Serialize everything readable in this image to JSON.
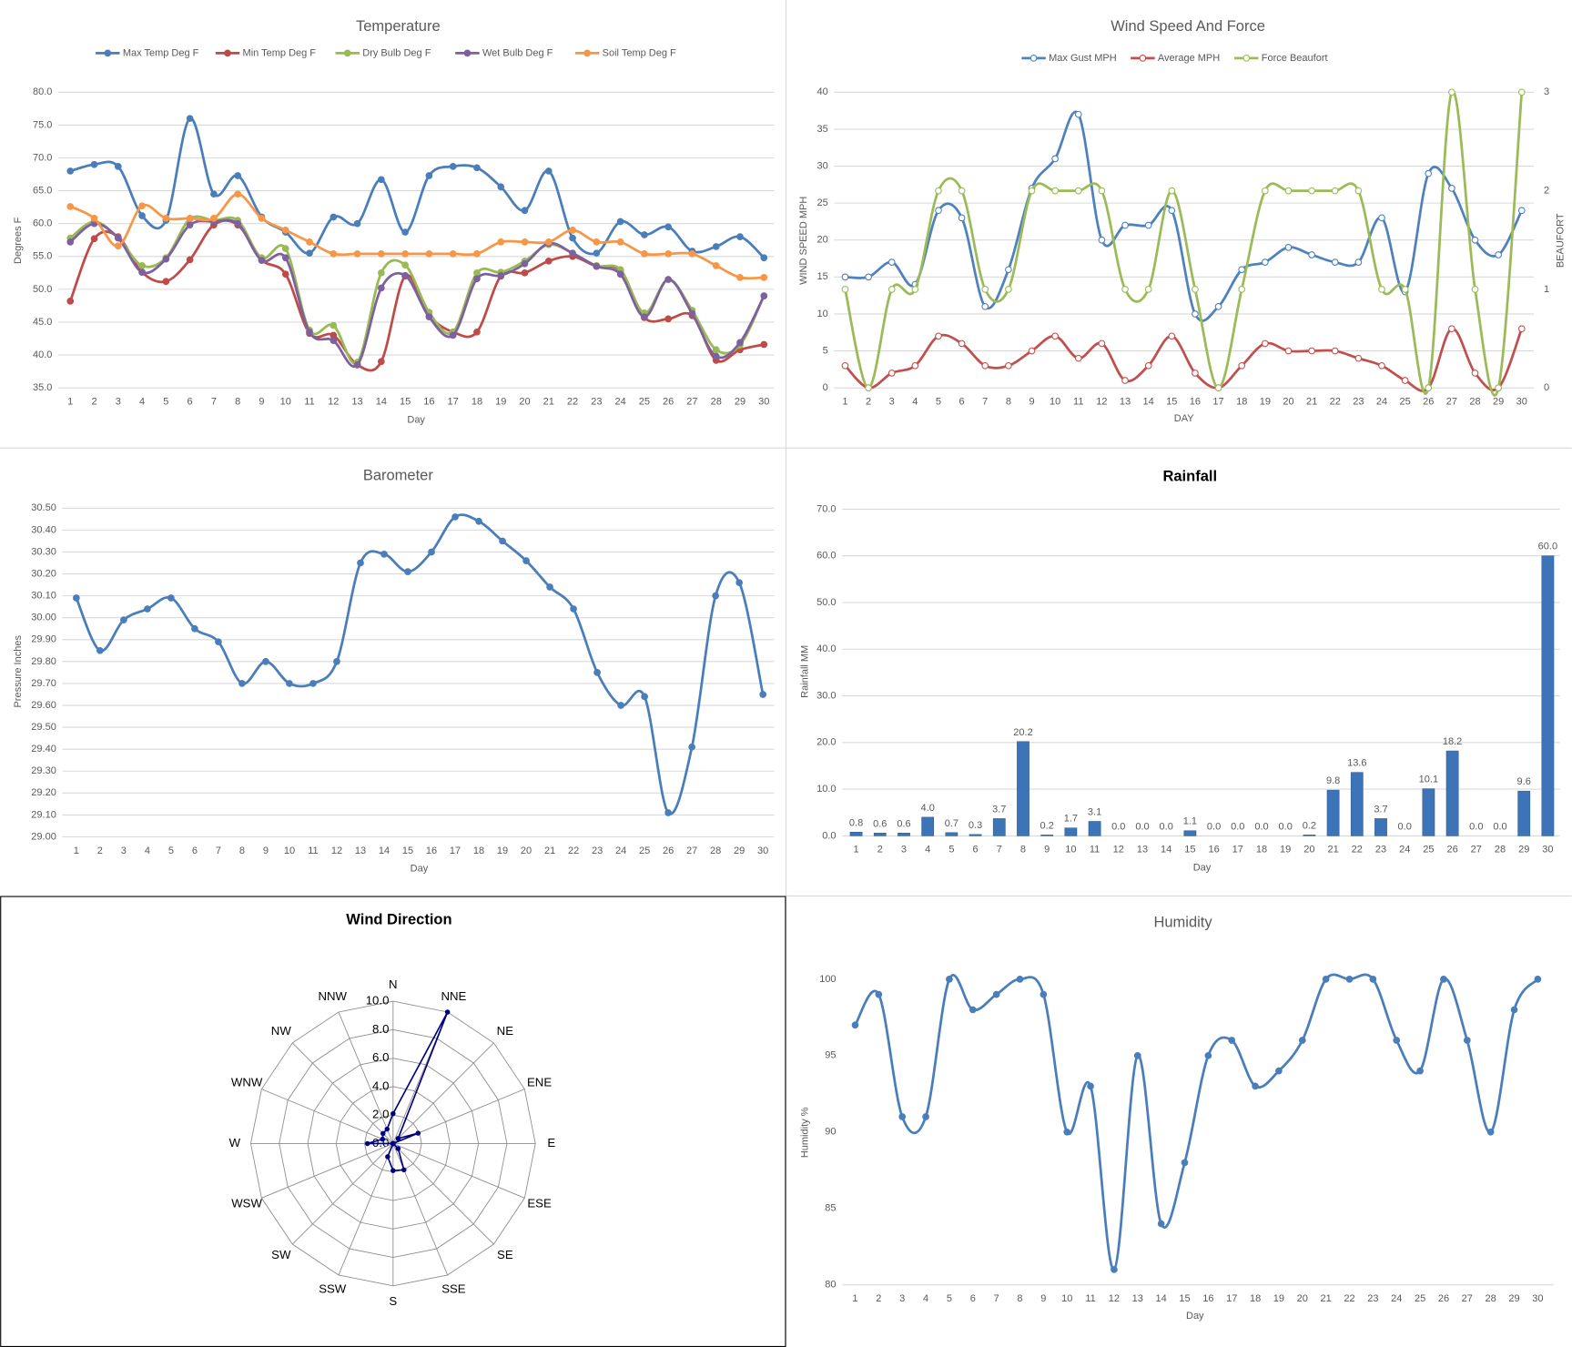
{
  "chart_data": [
    {
      "type": "line",
      "title": "Temperature",
      "legend": "top",
      "grid": true,
      "x_label": "Day",
      "y_label": "Degrees F",
      "categories": [
        1,
        2,
        3,
        4,
        5,
        6,
        7,
        8,
        9,
        10,
        11,
        12,
        13,
        14,
        15,
        16,
        17,
        18,
        19,
        20,
        21,
        22,
        23,
        24,
        25,
        26,
        27,
        28,
        29,
        30
      ],
      "ylim": [
        35,
        80
      ],
      "yticks": [
        {
          "value": 35,
          "label": "35.0"
        },
        {
          "value": 40,
          "label": "40.0"
        },
        {
          "value": 45,
          "label": "45.0"
        },
        {
          "value": 50,
          "label": "50.0"
        },
        {
          "value": 55,
          "label": "55.0"
        },
        {
          "value": 60,
          "label": "60.0"
        },
        {
          "value": 65,
          "label": "65.0"
        },
        {
          "value": 70,
          "label": "70.0"
        },
        {
          "value": 75,
          "label": "75.0"
        },
        {
          "value": 80,
          "label": "80.0"
        }
      ],
      "series": [
        {
          "name": "Max Temp Deg F",
          "color": "#4a7ebb",
          "values": [
            68.0,
            69.0,
            68.7,
            61.2,
            60.5,
            76.0,
            64.5,
            67.3,
            61.0,
            58.7,
            55.5,
            61.0,
            60.0,
            66.7,
            58.7,
            67.3,
            68.7,
            68.5,
            65.6,
            62.0,
            68.0,
            57.8,
            55.5,
            60.3,
            58.3,
            59.5,
            55.8,
            56.5,
            58.0,
            54.8
          ]
        },
        {
          "name": "Min Temp Deg F",
          "color": "#be4b48",
          "values": [
            48.2,
            57.7,
            58.0,
            52.6,
            51.2,
            54.5,
            59.8,
            59.8,
            54.5,
            52.3,
            43.3,
            43.0,
            38.5,
            39.0,
            52.0,
            46.0,
            43.5,
            43.5,
            52.0,
            52.5,
            54.3,
            55.0,
            53.5,
            52.8,
            45.7,
            45.5,
            46.0,
            39.2,
            40.8,
            41.6
          ]
        },
        {
          "name": "Dry Bulb Deg F",
          "color": "#98b954",
          "values": [
            57.8,
            60.3,
            57.8,
            53.6,
            54.8,
            60.7,
            60.5,
            60.5,
            54.8,
            56.2,
            43.8,
            44.5,
            38.9,
            52.5,
            53.7,
            46.5,
            43.5,
            52.5,
            52.6,
            54.3,
            56.8,
            55.5,
            53.6,
            53.0,
            46.4,
            51.5,
            46.8,
            40.8,
            41.5,
            49.0
          ]
        },
        {
          "name": "Wet Bulb Deg F",
          "color": "#7d60a0",
          "values": [
            57.2,
            60.0,
            57.8,
            52.6,
            54.6,
            59.8,
            60.3,
            60.0,
            54.4,
            54.8,
            43.5,
            42.2,
            38.5,
            50.2,
            52.1,
            45.8,
            43.0,
            51.6,
            52.1,
            53.9,
            57.0,
            55.5,
            53.5,
            52.3,
            45.8,
            51.5,
            46.3,
            39.8,
            41.9,
            49.0
          ]
        },
        {
          "name": "Soil Temp Deg F",
          "color": "#f79646",
          "values": [
            62.6,
            60.8,
            56.6,
            62.7,
            60.8,
            60.8,
            60.8,
            64.5,
            60.8,
            59.0,
            57.2,
            55.4,
            55.4,
            55.4,
            55.4,
            55.4,
            55.4,
            55.4,
            57.2,
            57.2,
            57.2,
            59.0,
            57.2,
            57.2,
            55.4,
            55.4,
            55.4,
            53.6,
            51.8,
            51.8
          ]
        }
      ]
    },
    {
      "type": "line",
      "title": "Wind Speed And Force",
      "legend": "top",
      "grid": true,
      "markers": "hollow",
      "x_label": "DAY",
      "y_label": "WIND SPEED MPH",
      "y2_label": "BEAUFORT",
      "categories": [
        1,
        2,
        3,
        4,
        5,
        6,
        7,
        8,
        9,
        10,
        11,
        12,
        13,
        14,
        15,
        16,
        17,
        18,
        19,
        20,
        21,
        22,
        23,
        24,
        25,
        26,
        27,
        28,
        29,
        30
      ],
      "ylim": [
        0,
        40
      ],
      "yticks": [
        0,
        5,
        10,
        15,
        20,
        25,
        30,
        35,
        40
      ],
      "y2lim": [
        0,
        3
      ],
      "y2ticks": [
        0,
        1,
        2,
        3
      ],
      "series": [
        {
          "name": "Max Gust MPH",
          "color": "#4f81bd",
          "values": [
            15,
            15,
            17,
            14,
            24,
            23,
            11,
            16,
            27,
            31,
            37,
            20,
            22,
            22,
            24,
            10,
            11,
            16,
            17,
            19,
            18,
            17,
            17,
            23,
            13,
            29,
            27,
            20,
            18,
            24
          ]
        },
        {
          "name": "Average MPH",
          "color": "#c0504d",
          "values": [
            3,
            0,
            2,
            3,
            7,
            6,
            3,
            3,
            5,
            7,
            4,
            6,
            1,
            3,
            7,
            2,
            0,
            3,
            6,
            5,
            5,
            5,
            4,
            3,
            1,
            0,
            8,
            2,
            0,
            8
          ]
        },
        {
          "name": "Force Beaufort",
          "color": "#9bbb59",
          "axis": "y2",
          "values": [
            1,
            0,
            1,
            1,
            2,
            2,
            1,
            1,
            2,
            2,
            2,
            2,
            1,
            1,
            2,
            1,
            0,
            1,
            2,
            2,
            2,
            2,
            2,
            1,
            1,
            0,
            3,
            1,
            0,
            3
          ]
        }
      ]
    },
    {
      "type": "line",
      "title": "Barometer",
      "grid": true,
      "x_label": "Day",
      "y_label": "Pressure Inches",
      "categories": [
        1,
        2,
        3,
        4,
        5,
        6,
        7,
        8,
        9,
        10,
        11,
        12,
        13,
        14,
        15,
        16,
        17,
        18,
        19,
        20,
        21,
        22,
        23,
        24,
        25,
        26,
        27,
        28,
        29,
        30
      ],
      "ylim": [
        29.0,
        30.5
      ],
      "yticks": [
        {
          "value": 29.0,
          "label": "29.00"
        },
        {
          "value": 29.1,
          "label": "29.10"
        },
        {
          "value": 29.2,
          "label": "29.20"
        },
        {
          "value": 29.3,
          "label": "29.30"
        },
        {
          "value": 29.4,
          "label": "29.40"
        },
        {
          "value": 29.5,
          "label": "29.50"
        },
        {
          "value": 29.6,
          "label": "29.60"
        },
        {
          "value": 29.7,
          "label": "29.70"
        },
        {
          "value": 29.8,
          "label": "29.80"
        },
        {
          "value": 29.9,
          "label": "29.90"
        },
        {
          "value": 30.0,
          "label": "30.00"
        },
        {
          "value": 30.1,
          "label": "30.10"
        },
        {
          "value": 30.2,
          "label": "30.20"
        },
        {
          "value": 30.3,
          "label": "30.30"
        },
        {
          "value": 30.4,
          "label": "30.40"
        },
        {
          "value": 30.5,
          "label": "30.50"
        }
      ],
      "series": [
        {
          "name": "Pressure",
          "color": "#4a7ebb",
          "values": [
            30.09,
            29.85,
            29.99,
            30.04,
            30.09,
            29.95,
            29.89,
            29.7,
            29.8,
            29.7,
            29.7,
            29.8,
            30.25,
            30.29,
            30.21,
            30.3,
            30.46,
            30.44,
            30.35,
            30.26,
            30.14,
            30.04,
            29.75,
            29.6,
            29.64,
            29.11,
            29.41,
            30.1,
            30.16,
            29.65
          ]
        }
      ]
    },
    {
      "type": "bar",
      "title": "Rainfall",
      "grid": true,
      "x_label": "Day",
      "y_label": "Rainfall MM",
      "color": "#3d74b8",
      "categories": [
        1,
        2,
        3,
        4,
        5,
        6,
        7,
        8,
        9,
        10,
        11,
        12,
        13,
        14,
        15,
        16,
        17,
        18,
        19,
        20,
        21,
        22,
        23,
        24,
        25,
        26,
        27,
        28,
        29,
        30
      ],
      "ylim": [
        0,
        70
      ],
      "yticks": [
        {
          "value": 0,
          "label": "0.0"
        },
        {
          "value": 10,
          "label": "10.0"
        },
        {
          "value": 20,
          "label": "20.0"
        },
        {
          "value": 30,
          "label": "30.0"
        },
        {
          "value": 40,
          "label": "40.0"
        },
        {
          "value": 50,
          "label": "50.0"
        },
        {
          "value": 60,
          "label": "60.0"
        },
        {
          "value": 70,
          "label": "70.0"
        }
      ],
      "values": [
        0.8,
        0.6,
        0.6,
        4.0,
        0.7,
        0.3,
        3.7,
        20.2,
        0.2,
        1.7,
        3.1,
        0,
        0,
        0,
        1.1,
        0,
        0,
        0,
        0,
        0.2,
        9.8,
        13.6,
        3.7,
        0,
        10.1,
        18.2,
        0,
        0,
        9.6,
        60.0
      ],
      "value_labels": [
        "0.8",
        "0.6",
        "0.6",
        "4.0",
        "0.7",
        "0.3",
        "3.7",
        "20.2",
        "0.2",
        "1.7",
        "3.1",
        "0.0",
        "0.0",
        "0.0",
        "1.1",
        "0.0",
        "0.0",
        "0.0",
        "0.0",
        "0.2",
        "9.8",
        "13.6",
        "3.7",
        "0.0",
        "10.1",
        "18.2",
        "0.0",
        "0.0",
        "9.6",
        "60.0"
      ]
    },
    {
      "type": "radar",
      "title": "Wind Direction",
      "color": "#000080",
      "categories": [
        "N",
        "NNE",
        "NE",
        "ENE",
        "E",
        "ESE",
        "SE",
        "SSE",
        "S",
        "SSW",
        "SW",
        "WSW",
        "W",
        "WNW",
        "NW",
        "NNW"
      ],
      "ylim": [
        0,
        10
      ],
      "yticks": [
        {
          "value": 0,
          "label": "0.0"
        },
        {
          "value": 2,
          "label": "2.0"
        },
        {
          "value": 4,
          "label": "4.0"
        },
        {
          "value": 6,
          "label": "6.0"
        },
        {
          "value": 8,
          "label": "8.0"
        },
        {
          "value": 10,
          "label": "10.0"
        }
      ],
      "values": [
        2.1,
        10,
        0.5,
        1.9,
        0,
        0,
        0.5,
        2.0,
        1.9,
        1.0,
        0,
        0,
        1.8,
        0.8,
        1.0,
        1.1
      ]
    },
    {
      "type": "line",
      "title": "Humidity",
      "grid": false,
      "x_label": "Day",
      "y_label": "Humidity %",
      "categories": [
        1,
        2,
        3,
        4,
        5,
        6,
        7,
        8,
        9,
        10,
        11,
        12,
        13,
        14,
        15,
        16,
        17,
        18,
        19,
        20,
        21,
        22,
        23,
        24,
        25,
        26,
        27,
        28,
        29,
        30
      ],
      "ylim": [
        80,
        100
      ],
      "yticks": [
        80,
        85,
        90,
        95,
        100
      ],
      "series": [
        {
          "name": "Humidity",
          "color": "#4a7ebb",
          "values": [
            97,
            99,
            91,
            91,
            100,
            98,
            99,
            100,
            99,
            90,
            93,
            81,
            95,
            84,
            88,
            95,
            96,
            93,
            94,
            96,
            100,
            100,
            100,
            96,
            94,
            100,
            96,
            90,
            98,
            100
          ]
        }
      ]
    }
  ]
}
